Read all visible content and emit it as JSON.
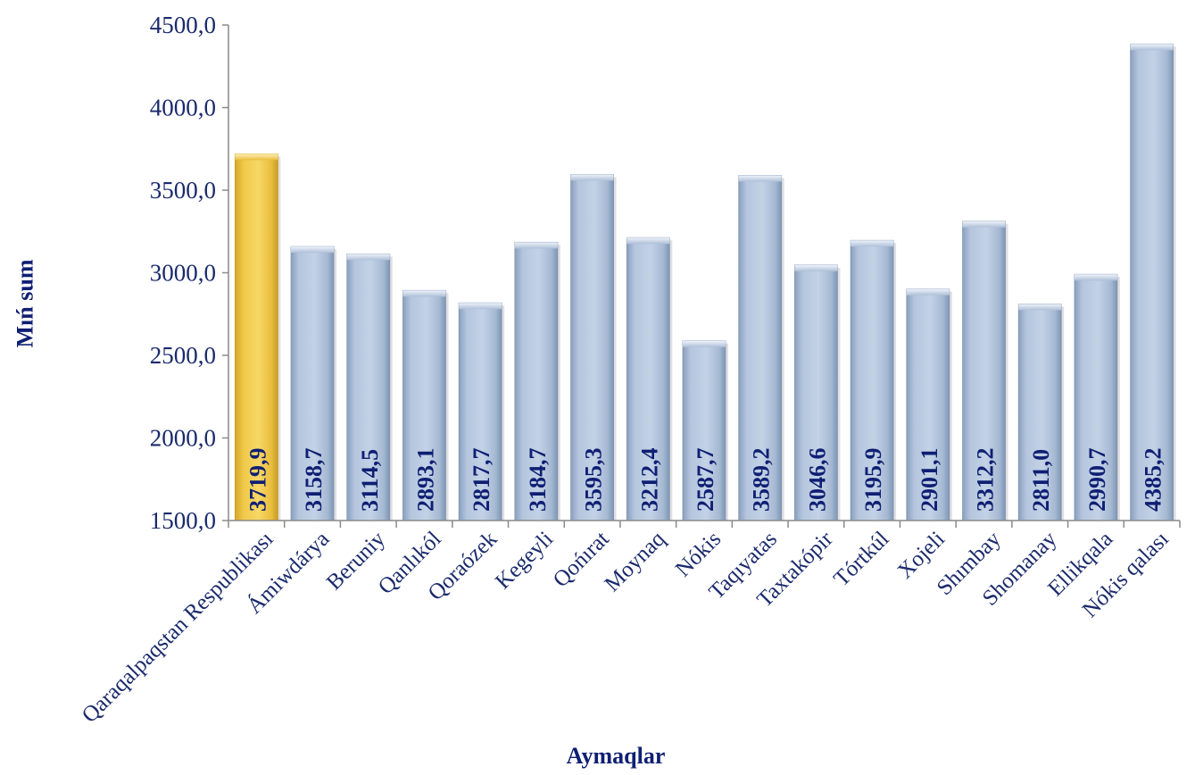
{
  "chart_data": {
    "type": "bar",
    "xlabel": "Aymaqlar",
    "ylabel": "Mıń sum",
    "ylim": [
      1500,
      4500
    ],
    "yticks": [
      "1500,0",
      "2000,0",
      "2500,0",
      "3000,0",
      "3500,0",
      "4000,0",
      "4500,0"
    ],
    "categories": [
      "Qaraqalpaqstan Respublikası",
      "Ámiwdárya",
      "Beruniy",
      "Qanlıkól",
      "Qoraózek",
      "Kegeyli",
      "Qońırat",
      "Moynaq",
      "Nókis",
      "Taqıyatas",
      "Taxtakópir",
      "Tórtkúl",
      "Xojeli",
      "Shımbay",
      "Shomanay",
      "Ellikqala",
      "Nókis qalası"
    ],
    "values": [
      3719.9,
      3158.7,
      3114.5,
      2893.1,
      2817.7,
      3184.7,
      3595.3,
      3212.4,
      2587.7,
      3589.2,
      3046.6,
      3195.9,
      2901.1,
      3312.2,
      2811.0,
      2990.7,
      4385.2
    ],
    "value_labels": [
      "3719,9",
      "3158,7",
      "3114,5",
      "2893,1",
      "2817,7",
      "3184,7",
      "3595,3",
      "3212,4",
      "2587,7",
      "3589,2",
      "3046,6",
      "3195,9",
      "2901,1",
      "3312,2",
      "2811,0",
      "2990,7",
      "4385,2"
    ],
    "highlight_index": 0,
    "colors": {
      "bar": "#b7c7de",
      "highlight": "#f2c94c",
      "label": "#0f1f73",
      "axis": "#8a8a8a"
    },
    "grid": false,
    "legend": "none"
  }
}
